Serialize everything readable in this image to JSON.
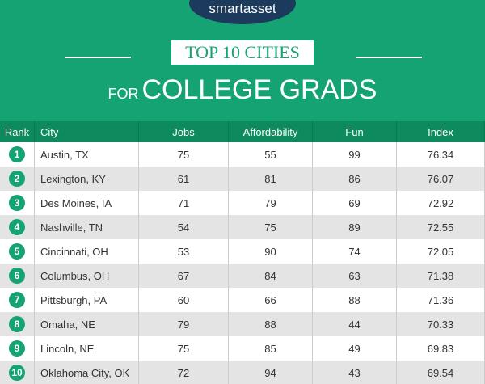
{
  "header": {
    "logo": "smartasset",
    "title": "TOP 10 CITIES",
    "subtitle_lead": "FOR",
    "subtitle": "COLLEGE GRADS"
  },
  "table": {
    "columns": [
      "Rank",
      "City",
      "Jobs",
      "Affordability",
      "Fun",
      "Index"
    ],
    "rows": [
      [
        "1",
        "Austin, TX",
        "75",
        "55",
        "99",
        "76.34"
      ],
      [
        "2",
        "Lexington, KY",
        "61",
        "81",
        "86",
        "76.07"
      ],
      [
        "3",
        "Des Moines, IA",
        "71",
        "79",
        "69",
        "72.92"
      ],
      [
        "4",
        "Nashville, TN",
        "54",
        "75",
        "89",
        "72.55"
      ],
      [
        "5",
        "Cincinnati, OH",
        "53",
        "90",
        "74",
        "72.05"
      ],
      [
        "6",
        "Columbus, OH",
        "67",
        "84",
        "63",
        "71.38"
      ],
      [
        "7",
        "Pittsburgh, PA",
        "60",
        "66",
        "88",
        "71.36"
      ],
      [
        "8",
        "Omaha, NE",
        "79",
        "88",
        "44",
        "70.33"
      ],
      [
        "9",
        "Lincoln, NE",
        "75",
        "85",
        "49",
        "69.83"
      ],
      [
        "10",
        "Oklahoma City, OK",
        "72",
        "94",
        "43",
        "69.54"
      ]
    ]
  }
}
